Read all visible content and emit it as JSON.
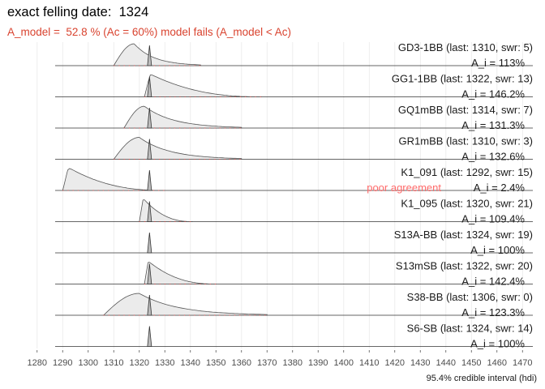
{
  "title": "exact felling date:  1324",
  "subtitle": "A_model =  52.8 % (Ac = 60%) model fails (A_model < Ac)",
  "chart_data": {
    "type": "area",
    "xlim": [
      1275,
      1475
    ],
    "x_ticks": [
      1280,
      1290,
      1300,
      1310,
      1320,
      1330,
      1340,
      1350,
      1360,
      1370,
      1380,
      1390,
      1400,
      1410,
      1420,
      1430,
      1440,
      1450,
      1460,
      1470
    ],
    "x_label": "95.4% credible interval (hdi)",
    "felling_date": 1324,
    "rows": [
      {
        "name": "GD3-1BB",
        "label": "GD3-1BB (last: 1310, swr: 5)",
        "agreement": "A_i = 113%",
        "warning": "",
        "dist": {
          "start": 1310,
          "mode": 1318,
          "end": 1344,
          "sharp": 0
        }
      },
      {
        "name": "GG1-1BB",
        "label": "GG1-1BB (last: 1322, swr: 13)",
        "agreement": "A_i = 146.2%",
        "warning": "",
        "dist": {
          "start": 1322,
          "mode": 1325,
          "end": 1368,
          "sharp": 1
        }
      },
      {
        "name": "GQ1mBB",
        "label": "GQ1mBB (last: 1314, swr: 7)",
        "agreement": "A_i = 131.3%",
        "warning": "",
        "dist": {
          "start": 1314,
          "mode": 1322,
          "end": 1360,
          "sharp": 0
        }
      },
      {
        "name": "GR1mBB",
        "label": "GR1mBB (last: 1310, swr: 3)",
        "agreement": "A_i = 132.6%",
        "warning": "",
        "dist": {
          "start": 1310,
          "mode": 1320,
          "end": 1360,
          "sharp": 0
        }
      },
      {
        "name": "K1_091",
        "label": "K1_091 (last: 1292, swr: 15)",
        "agreement": "A_i = 2.4%",
        "warning": "poor agreement",
        "dist": {
          "start": 1290,
          "mode": 1293,
          "end": 1330,
          "sharp": 1
        }
      },
      {
        "name": "K1_095",
        "label": "K1_095 (last: 1320, swr: 21)",
        "agreement": "A_i = 109.4%",
        "warning": "",
        "dist": {
          "start": 1320,
          "mode": 1322,
          "end": 1341,
          "sharp": 1
        }
      },
      {
        "name": "S13A-BB",
        "label": "S13A-BB (last: 1324, swr: 19)",
        "agreement": "A_i = 100%",
        "warning": "",
        "dist": null
      },
      {
        "name": "S13mSB",
        "label": "S13mSB (last: 1322, swr: 20)",
        "agreement": "A_i = 142.4%",
        "warning": "",
        "dist": {
          "start": 1322,
          "mode": 1324,
          "end": 1350,
          "sharp": 1
        }
      },
      {
        "name": "S38-BB",
        "label": "S38-BB (last: 1306, swr: 0)",
        "agreement": "A_i = 123.3%",
        "warning": "",
        "dist": {
          "start": 1306,
          "mode": 1320,
          "end": 1370,
          "sharp": 0
        }
      },
      {
        "name": "S6-SB",
        "label": "S6-SB (last: 1324, swr: 14)",
        "agreement": "A_i = 100%",
        "warning": "",
        "dist": null
      }
    ]
  }
}
